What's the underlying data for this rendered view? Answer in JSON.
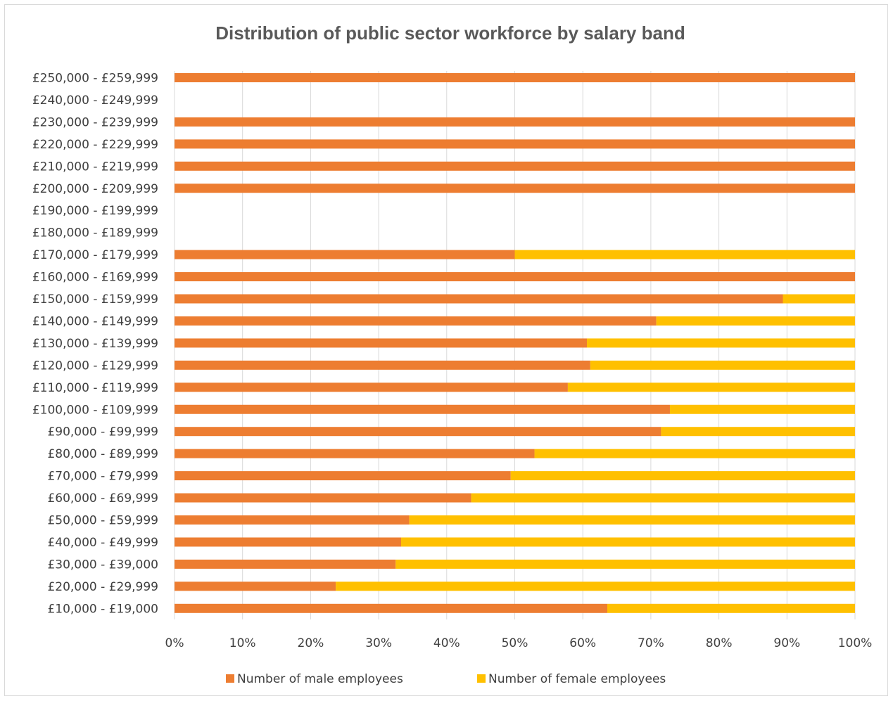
{
  "chart_data": {
    "type": "bar",
    "orientation": "horizontal",
    "stacked": "percent",
    "title": "Distribution of public sector workforce by salary band",
    "xlabel": "",
    "ylabel": "",
    "xlim": [
      0,
      100
    ],
    "x_ticks": [
      "0%",
      "10%",
      "20%",
      "30%",
      "40%",
      "50%",
      "60%",
      "70%",
      "80%",
      "90%",
      "100%"
    ],
    "grid": "vertical",
    "legend_position": "bottom",
    "categories": [
      "£250,000 - £259,999",
      "£240,000 - £249,999",
      "£230,000 - £239,999",
      "£220,000 - £229,999",
      "£210,000 - £219,999",
      "£200,000 - £209,999",
      "£190,000 - £199,999",
      "£180,000 - £189,999",
      "£170,000 - £179,999",
      "£160,000 - £169,999",
      "£150,000 - £159,999",
      "£140,000 - £149,999",
      "£130,000 - £139,999",
      "£120,000 - £129,999",
      "£110,000 - £119,999",
      "£100,000 - £109,999",
      "£90,000 - £99,999",
      "£80,000 - £89,999",
      "£70,000 - £79,999",
      "£60,000 - £69,999",
      "£50,000 - £59,999",
      "£40,000 - £49,999",
      "£30,000 - £39,000",
      "£20,000 - £29,999",
      "£10,000 - £19,000"
    ],
    "series": [
      {
        "name": "Number of male employees",
        "color": "#ed7d31",
        "values": [
          100,
          0,
          100,
          100,
          100,
          100,
          0,
          0,
          50,
          100,
          89.4,
          70.8,
          60.6,
          61.1,
          57.8,
          72.8,
          71.5,
          52.9,
          49.4,
          43.6,
          34.5,
          33.3,
          32.5,
          23.7,
          63.6
        ]
      },
      {
        "name": "Number of female employees",
        "color": "#ffc000",
        "values": [
          0,
          0,
          0,
          0,
          0,
          0,
          0,
          0,
          50,
          0,
          10.6,
          29.2,
          39.4,
          38.9,
          42.2,
          27.2,
          28.5,
          47.1,
          50.6,
          56.4,
          65.5,
          66.7,
          67.5,
          76.3,
          36.4
        ]
      }
    ]
  }
}
